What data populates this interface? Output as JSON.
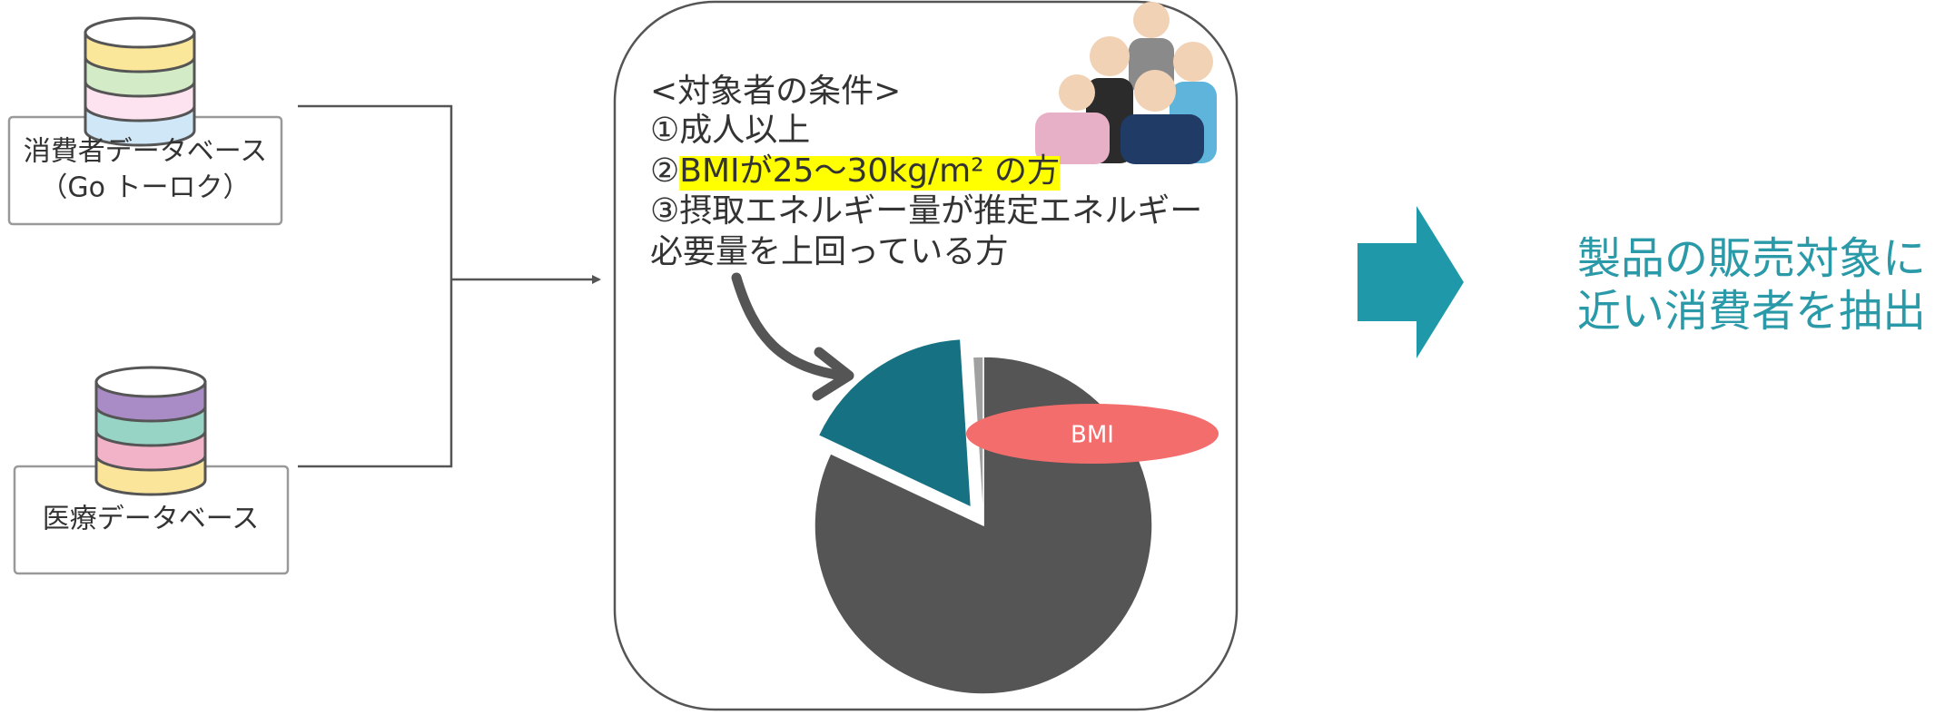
{
  "sources": [
    {
      "lines": [
        "消費者データベース",
        "（Go トーロク）"
      ],
      "colors": [
        "#fbe79a",
        "#d3ebc6",
        "#fce3ef",
        "#cfe7f7"
      ]
    },
    {
      "lines": [
        "医療データベース"
      ],
      "colors": [
        "#a98cc5",
        "#97d4c6",
        "#f2b3c9",
        "#fbe59a"
      ]
    }
  ],
  "criteria": {
    "heading": "<対象者の条件>",
    "item1": "①成人以上",
    "item2_marker": "②",
    "item2_highlight": "BMIが25～30kg/m² の方",
    "item3": [
      "③摂取エネルギー量が推定エネルギー",
      "必要量を上回っている方"
    ]
  },
  "pie": {
    "values": [
      82,
      17,
      1
    ],
    "colors": [
      "#555555",
      "#167282",
      "#a0a0a0"
    ],
    "label": "BMI"
  },
  "result": {
    "lines": [
      "製品の販売対象に",
      "近い消費者を抽出"
    ]
  }
}
